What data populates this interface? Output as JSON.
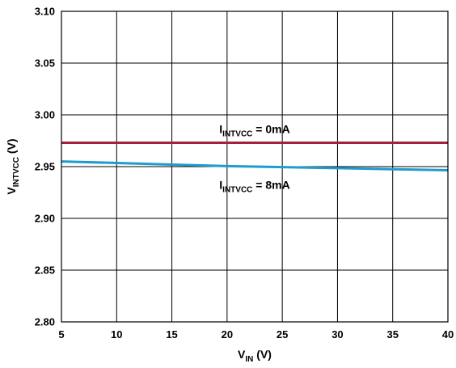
{
  "chart_data": {
    "type": "line",
    "xlabel": {
      "main": "V",
      "sub": "IN",
      "unit": " (V)"
    },
    "ylabel": {
      "main": "V",
      "sub": "INTVCC",
      "unit": " (V)"
    },
    "xlim": [
      5,
      40
    ],
    "ylim": [
      2.8,
      3.1
    ],
    "x_ticks": [
      5,
      10,
      15,
      20,
      25,
      30,
      35,
      40
    ],
    "x_tick_labels": [
      "5",
      "10",
      "15",
      "20",
      "25",
      "30",
      "35",
      "40"
    ],
    "y_ticks": [
      2.8,
      2.85,
      2.9,
      2.95,
      3.0,
      3.05,
      3.1
    ],
    "y_tick_labels": [
      "2.80",
      "2.85",
      "2.90",
      "2.95",
      "3.00",
      "3.05",
      "3.10"
    ],
    "grid": true,
    "series": [
      {
        "label_main": "I",
        "label_sub": "INTVCC",
        "label_rest": " = 0mA",
        "color": "#a3203f",
        "x": [
          5,
          40
        ],
        "y": [
          2.973,
          2.973
        ]
      },
      {
        "label_main": "I",
        "label_sub": "INTVCC",
        "label_rest": " = 8mA",
        "color": "#1f9ccd",
        "x": [
          5,
          10,
          15,
          20,
          25,
          30,
          35,
          40
        ],
        "y": [
          2.955,
          2.9535,
          2.952,
          2.9505,
          2.9495,
          2.9485,
          2.9475,
          2.9465
        ]
      }
    ]
  }
}
